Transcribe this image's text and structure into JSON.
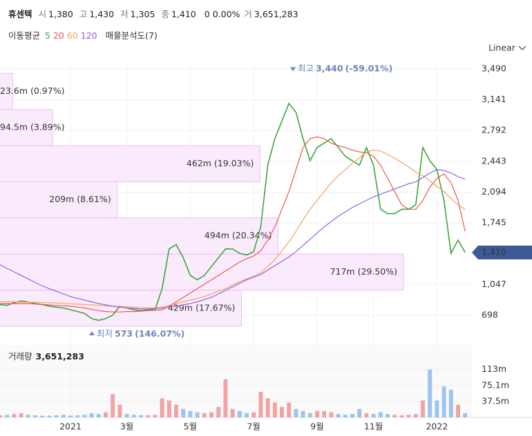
{
  "header": {
    "name": "휴센텍",
    "fields": [
      {
        "label": "시",
        "value": "1,380"
      },
      {
        "label": "고",
        "value": "1,430"
      },
      {
        "label": "저",
        "value": "1,305"
      },
      {
        "label": "종",
        "value": "1,410"
      }
    ],
    "change": "0 0.00%",
    "trade": {
      "label": "거",
      "value": "3,651,283"
    },
    "ma_title": "이동평균",
    "profile_title": "매물분석도(7)",
    "scale": "Linear"
  },
  "chart_data": {
    "type": "line",
    "categories": [
      null,
      null,
      null,
      null,
      null,
      null,
      null,
      null,
      null,
      null,
      "2021",
      null,
      null,
      null,
      null,
      null,
      null,
      null,
      "3월",
      null,
      null,
      null,
      null,
      null,
      null,
      null,
      null,
      "5월",
      null,
      null,
      null,
      null,
      null,
      null,
      null,
      null,
      "7월",
      null,
      null,
      null,
      null,
      null,
      null,
      null,
      null,
      "9월",
      null,
      null,
      null,
      null,
      null,
      null,
      null,
      "11월",
      null,
      null,
      null,
      null,
      null,
      null,
      null,
      null,
      "2022",
      null,
      null,
      null,
      null
    ],
    "series": [
      {
        "name": "5",
        "color": "#3aa63a",
        "values": [
          820,
          810,
          840,
          860,
          850,
          830,
          820,
          800,
          790,
          780,
          760,
          740,
          720,
          660,
          640,
          660,
          700,
          800,
          780,
          760,
          750,
          760,
          760,
          1000,
          1450,
          1500,
          1350,
          1150,
          1100,
          1150,
          1250,
          1350,
          1450,
          1450,
          1400,
          1380,
          1420,
          1700,
          2400,
          2700,
          2900,
          3100,
          3000,
          2700,
          2450,
          2600,
          2650,
          2700,
          2600,
          2500,
          2450,
          2400,
          2600,
          2400,
          1900,
          1850,
          1850,
          1900,
          1900,
          1950,
          2600,
          2450,
          2350,
          2000,
          1400,
          1550,
          1410
        ]
      },
      {
        "name": "20",
        "color": "#ef5350",
        "values": [
          830,
          830,
          830,
          830,
          830,
          825,
          820,
          815,
          810,
          805,
          800,
          790,
          780,
          765,
          750,
          740,
          735,
          735,
          740,
          740,
          745,
          750,
          755,
          760,
          800,
          850,
          900,
          950,
          1000,
          1050,
          1100,
          1150,
          1200,
          1250,
          1300,
          1340,
          1370,
          1430,
          1550,
          1700,
          1900,
          2100,
          2350,
          2600,
          2700,
          2720,
          2700,
          2650,
          2620,
          2600,
          2570,
          2550,
          2540,
          2500,
          2400,
          2250,
          2100,
          1950,
          1900,
          1900,
          2000,
          2150,
          2250,
          2300,
          2200,
          2000,
          1650
        ]
      },
      {
        "name": "60",
        "color": "#f4a15d",
        "values": [
          850,
          850,
          850,
          848,
          846,
          844,
          842,
          840,
          836,
          832,
          828,
          824,
          820,
          815,
          810,
          805,
          800,
          796,
          792,
          788,
          785,
          782,
          780,
          790,
          810,
          830,
          850,
          870,
          890,
          910,
          940,
          970,
          1000,
          1040,
          1080,
          1110,
          1140,
          1180,
          1250,
          1330,
          1430,
          1530,
          1650,
          1780,
          1900,
          2000,
          2100,
          2200,
          2280,
          2350,
          2420,
          2480,
          2550,
          2570,
          2560,
          2520,
          2480,
          2430,
          2380,
          2320,
          2280,
          2220,
          2160,
          2100,
          2020,
          1950,
          1900
        ]
      },
      {
        "name": "120",
        "color": "#8e5fe0",
        "values": [
          1270,
          1230,
          1190,
          1150,
          1110,
          1070,
          1030,
          1000,
          970,
          940,
          910,
          890,
          870,
          850,
          830,
          815,
          800,
          790,
          780,
          775,
          770,
          770,
          775,
          780,
          790,
          800,
          815,
          830,
          850,
          875,
          900,
          940,
          980,
          1020,
          1060,
          1100,
          1130,
          1160,
          1210,
          1260,
          1310,
          1360,
          1420,
          1490,
          1560,
          1630,
          1700,
          1760,
          1820,
          1870,
          1920,
          1960,
          2000,
          2040,
          2070,
          2100,
          2130,
          2160,
          2190,
          2210,
          2260,
          2310,
          2350,
          2340,
          2310,
          2270,
          2240
        ]
      }
    ],
    "ylim": [
      600,
      3580
    ],
    "yticks": [
      {
        "value": 3490,
        "label": "3,490"
      },
      {
        "value": 3141,
        "label": "3,141"
      },
      {
        "value": 2792,
        "label": "2,792"
      },
      {
        "value": 2443,
        "label": "2,443"
      },
      {
        "value": 2094,
        "label": "2,094"
      },
      {
        "value": 1745,
        "label": "1,745"
      },
      {
        "value": 1047,
        "label": "1,047"
      },
      698
    ],
    "grid": true,
    "high": {
      "label": "최고",
      "value": 3440,
      "value_label": "3,440",
      "change": "(-59.01%)"
    },
    "low": {
      "label": "최저",
      "value": 573,
      "change": "(146.07%)"
    },
    "last": {
      "value": 1410,
      "label": "1,410"
    },
    "volume_profile": {
      "color": "#f9e7fc",
      "border": "#e8bff0",
      "bands": [
        {
          "label": "23.6m (0.97%)",
          "percent": 0.97
        },
        {
          "label": "94.5m (3.89%)",
          "percent": 3.89
        },
        {
          "label": "462m (19.03%)",
          "percent": 19.03
        },
        {
          "label": "209m (8.61%)",
          "percent": 8.61
        },
        {
          "label": "494m (20.34%)",
          "percent": 20.34
        },
        {
          "label": "717m (29.50%)",
          "percent": 29.5
        },
        {
          "label": "429m (17.67%)",
          "percent": 17.67
        }
      ]
    },
    "volume": {
      "title": "거래량",
      "last": {
        "value": 3651283,
        "label": "3,651,283"
      },
      "ylim": [
        0,
        171
      ],
      "yticks": [
        {
          "value": 113,
          "label": "113m"
        },
        {
          "value": 75.1,
          "label": "75.1m"
        },
        {
          "value": 37.5,
          "label": "37.5m"
        }
      ],
      "values": [
        5,
        6,
        8,
        10,
        6,
        5,
        4,
        4,
        5,
        6,
        4,
        5,
        6,
        10,
        8,
        12,
        55,
        30,
        8,
        6,
        5,
        5,
        6,
        45,
        40,
        30,
        20,
        15,
        12,
        10,
        12,
        25,
        90,
        20,
        15,
        10,
        12,
        60,
        45,
        35,
        25,
        35,
        20,
        15,
        10,
        15,
        15,
        12,
        8,
        6,
        8,
        20,
        10,
        8,
        12,
        8,
        6,
        5,
        6,
        8,
        40,
        113,
        40,
        73,
        65,
        30,
        10
      ]
    }
  }
}
